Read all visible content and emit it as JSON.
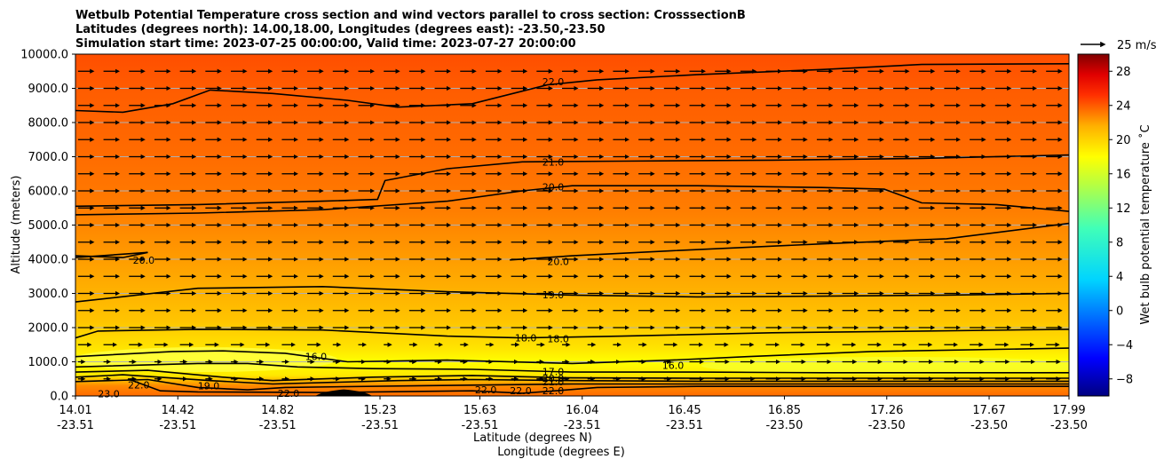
{
  "chart_data": {
    "type": "contour",
    "title_lines": [
      "Wetbulb Potential Temperature cross section and wind vectors parallel to cross section: CrosssectionB",
      "Latitudes (degrees north): 14.00,18.00, Longitudes (degrees east): -23.50,-23.50",
      "Simulation start time: 2023-07-25 00:00:00, Valid time: 2023-07-27 20:00:00"
    ],
    "ylabel": "Altitude (meters)",
    "xlabel_lat": "Latitude (degrees N)",
    "xlabel_lon": "Longitude (degrees E)",
    "ylim": [
      0,
      10000
    ],
    "yticks": [
      "0.0",
      "1000.0",
      "2000.0",
      "3000.0",
      "4000.0",
      "5000.0",
      "6000.0",
      "7000.0",
      "8000.0",
      "9000.0",
      "10000.0"
    ],
    "ytick_values": [
      0,
      1000,
      2000,
      3000,
      4000,
      5000,
      6000,
      7000,
      8000,
      9000,
      10000
    ],
    "xlim": [
      14.01,
      17.99
    ],
    "xtick_values": [
      14.01,
      14.42,
      14.82,
      15.23,
      15.63,
      16.04,
      16.45,
      16.85,
      17.26,
      17.67,
      17.99
    ],
    "xtick_lat": [
      "14.01",
      "14.42",
      "14.82",
      "15.23",
      "15.63",
      "16.04",
      "16.45",
      "16.85",
      "17.26",
      "17.67",
      "17.99"
    ],
    "xtick_lon": [
      "-23.51",
      "-23.51",
      "-23.51",
      "-23.51",
      "-23.51",
      "-23.51",
      "-23.51",
      "-23.50",
      "-23.50",
      "-23.50",
      "-23.50"
    ],
    "grid": "horizontal",
    "colorbar": {
      "label": "Wet bulb potential temperature ˚C",
      "range": [
        -10,
        30
      ],
      "ticks": [
        "−8",
        "−4",
        "0",
        "4",
        "8",
        "12",
        "16",
        "20",
        "24",
        "28"
      ],
      "tick_values": [
        -8,
        -4,
        0,
        4,
        8,
        12,
        16,
        20,
        24,
        28
      ]
    },
    "quiver_key": {
      "label": "25 m/s",
      "value": 25
    },
    "contour_lines": [
      {
        "level": 22.0,
        "label": "22.0",
        "label_pos": [
          15.88,
          9200
        ],
        "points": [
          [
            14.01,
            8350
          ],
          [
            14.2,
            8300
          ],
          [
            14.4,
            8550
          ],
          [
            14.55,
            8950
          ],
          [
            14.8,
            8850
          ],
          [
            15.1,
            8650
          ],
          [
            15.3,
            8450
          ],
          [
            15.6,
            8550
          ],
          [
            15.9,
            9100
          ],
          [
            16.1,
            9250
          ],
          [
            16.5,
            9400
          ],
          [
            17.0,
            9550
          ],
          [
            17.4,
            9700
          ],
          [
            17.99,
            9720
          ]
        ]
      },
      {
        "level": 21.0,
        "label": "21.0",
        "label_pos": [
          15.88,
          6850
        ],
        "points": [
          [
            14.01,
            5550
          ],
          [
            14.5,
            5600
          ],
          [
            15.0,
            5700
          ],
          [
            15.22,
            5750
          ],
          [
            15.25,
            6300
          ],
          [
            15.5,
            6650
          ],
          [
            15.8,
            6850
          ],
          [
            16.2,
            6870
          ],
          [
            16.8,
            6900
          ],
          [
            17.4,
            6950
          ],
          [
            17.99,
            7050
          ]
        ]
      },
      {
        "level": 20.0,
        "label": "20.0",
        "label_pos": [
          15.88,
          6120
        ],
        "points": [
          [
            14.01,
            5300
          ],
          [
            14.5,
            5350
          ],
          [
            15.0,
            5450
          ],
          [
            15.5,
            5700
          ],
          [
            15.8,
            6000
          ],
          [
            16.0,
            6150
          ],
          [
            16.5,
            6150
          ],
          [
            17.0,
            6100
          ],
          [
            17.25,
            6050
          ],
          [
            17.4,
            5650
          ],
          [
            17.7,
            5600
          ],
          [
            17.99,
            5400
          ]
        ]
      },
      {
        "level": 20.0,
        "label": "20.0",
        "label_pos": [
          15.9,
          3930
        ],
        "points": [
          [
            15.75,
            3980
          ],
          [
            16.0,
            4100
          ],
          [
            16.4,
            4250
          ],
          [
            17.0,
            4450
          ],
          [
            17.5,
            4600
          ],
          [
            17.99,
            5050
          ]
        ]
      },
      {
        "level": 20.0,
        "label": "20.0",
        "label_pos": [
          14.24,
          3980
        ],
        "points": [
          [
            14.01,
            4100
          ],
          [
            14.2,
            4050
          ],
          [
            14.3,
            4200
          ],
          [
            14.01,
            4050
          ]
        ]
      },
      {
        "level": 19.0,
        "label": "19.0",
        "label_pos": [
          15.88,
          2960
        ],
        "points": [
          [
            14.01,
            2750
          ],
          [
            14.5,
            3150
          ],
          [
            15.0,
            3200
          ],
          [
            15.5,
            3050
          ],
          [
            16.0,
            2950
          ],
          [
            16.5,
            2900
          ],
          [
            17.0,
            2920
          ],
          [
            17.5,
            2950
          ],
          [
            17.99,
            3000
          ]
        ]
      },
      {
        "level": 18.0,
        "label": "18.0",
        "label_pos": [
          15.9,
          1680
        ],
        "points": [
          [
            14.01,
            1700
          ],
          [
            14.1,
            1900
          ],
          [
            14.5,
            1950
          ],
          [
            15.0,
            1930
          ],
          [
            15.5,
            1750
          ],
          [
            15.8,
            1700
          ],
          [
            16.2,
            1750
          ],
          [
            16.8,
            1850
          ],
          [
            17.4,
            1900
          ],
          [
            17.99,
            1950
          ]
        ]
      },
      {
        "level": 16.0,
        "label": "16.0",
        "label_pos": [
          16.36,
          900
        ],
        "points": [
          [
            14.01,
            1150
          ],
          [
            14.4,
            1300
          ],
          [
            14.6,
            1320
          ],
          [
            14.85,
            1250
          ],
          [
            15.1,
            1000
          ],
          [
            15.5,
            1050
          ],
          [
            16.0,
            950
          ],
          [
            16.4,
            1050
          ],
          [
            16.7,
            1150
          ],
          [
            17.2,
            1300
          ],
          [
            17.99,
            1400
          ]
        ]
      },
      {
        "level": 17.0,
        "label": "17.0",
        "label_pos": [
          15.88,
          720
        ],
        "points": [
          [
            14.01,
            850
          ],
          [
            14.5,
            950
          ],
          [
            14.7,
            950
          ],
          [
            14.9,
            850
          ],
          [
            15.2,
            800
          ],
          [
            15.6,
            780
          ],
          [
            16.0,
            700
          ],
          [
            16.5,
            700
          ],
          [
            17.0,
            680
          ],
          [
            17.99,
            680
          ]
        ]
      },
      {
        "level": 19.0,
        "label": "19.0",
        "label_pos": [
          14.5,
          300
        ],
        "points": [
          [
            14.01,
            700
          ],
          [
            14.3,
            750
          ],
          [
            14.6,
            550
          ],
          [
            14.8,
            450
          ],
          [
            15.2,
            550
          ],
          [
            15.6,
            600
          ],
          [
            16.0,
            530
          ],
          [
            16.5,
            520
          ],
          [
            17.99,
            520
          ]
        ]
      },
      {
        "level": 20.0,
        "label": "20.0",
        "label_pos": [
          15.88,
          520
        ],
        "points": [
          [
            14.01,
            550
          ],
          [
            14.2,
            620
          ],
          [
            14.55,
            450
          ],
          [
            14.8,
            350
          ],
          [
            15.3,
            450
          ],
          [
            15.6,
            480
          ],
          [
            16.0,
            450
          ],
          [
            16.5,
            430
          ],
          [
            17.99,
            430
          ]
        ]
      },
      {
        "level": 21.0,
        "label": "21.0",
        "label_pos": [
          15.88,
          420
        ],
        "points": [
          [
            14.01,
            420
          ],
          [
            14.3,
            480
          ],
          [
            14.5,
            250
          ],
          [
            14.7,
            180
          ],
          [
            14.85,
            250
          ],
          [
            15.4,
            300
          ],
          [
            16.0,
            350
          ],
          [
            16.5,
            350
          ],
          [
            17.99,
            350
          ]
        ]
      },
      {
        "level": 22.0,
        "label": "22.0",
        "label_pos": [
          15.88,
          160
        ],
        "points": [
          [
            14.22,
            500
          ],
          [
            14.35,
            150
          ],
          [
            14.5,
            120
          ],
          [
            15.0,
            100
          ],
          [
            15.6,
            150
          ],
          [
            15.8,
            80
          ],
          [
            15.95,
            160
          ],
          [
            16.1,
            250
          ],
          [
            16.5,
            280
          ],
          [
            17.99,
            280
          ]
        ]
      }
    ],
    "extra_contour_labels": [
      {
        "label": "23.0",
        "at": [
          14.1,
          70
        ]
      },
      {
        "label": "22.0",
        "at": [
          14.22,
          330
        ]
      },
      {
        "label": "16.0",
        "at": [
          14.93,
          1150
        ]
      },
      {
        "label": "22.0",
        "at": [
          14.82,
          80
        ]
      },
      {
        "label": "22.0",
        "at": [
          15.61,
          180
        ]
      },
      {
        "label": "22.0",
        "at": [
          15.75,
          150
        ]
      },
      {
        "label": "18.0",
        "at": [
          15.77,
          1700
        ]
      }
    ],
    "terrain": {
      "x_range": [
        15.0,
        15.17
      ],
      "peak_altitude": 190
    },
    "wind_vectors": {
      "direction": "parallel, eastward along section",
      "rows": "every 500 m"
    }
  }
}
